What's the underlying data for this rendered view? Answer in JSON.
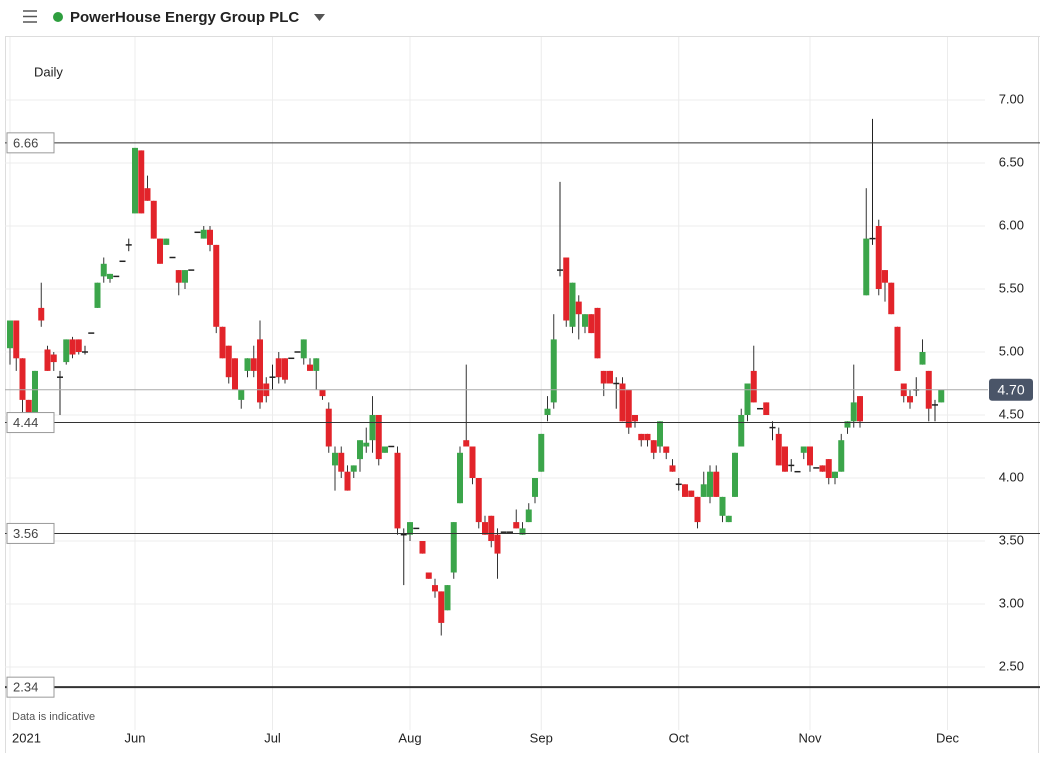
{
  "chart_data": {
    "type": "candlestick",
    "title": "PowerHouse Energy Group PLC",
    "interval": "Daily",
    "note": "Data is indicative",
    "up_color": "#3ba54a",
    "down_color": "#e2242a",
    "grid": true,
    "categories": [
      "2021",
      null,
      null,
      null,
      null,
      null,
      null,
      null,
      null,
      null,
      null,
      null,
      null,
      null,
      null,
      null,
      null,
      null,
      null,
      null,
      "Jun",
      null,
      null,
      null,
      null,
      null,
      null,
      null,
      null,
      null,
      null,
      null,
      null,
      null,
      null,
      null,
      null,
      null,
      null,
      null,
      null,
      null,
      "Jul",
      null,
      null,
      null,
      null,
      null,
      null,
      null,
      null,
      null,
      null,
      null,
      null,
      null,
      null,
      null,
      null,
      null,
      null,
      null,
      null,
      null,
      "Aug",
      null,
      null,
      null,
      null,
      null,
      null,
      null,
      null,
      null,
      null,
      null,
      null,
      null,
      null,
      null,
      null,
      null,
      null,
      null,
      null,
      "Sep",
      null,
      null,
      null,
      null,
      null,
      null,
      null,
      null,
      null,
      null,
      null,
      null,
      null,
      null,
      null,
      null,
      null,
      null,
      null,
      null,
      null,
      "Oct",
      null,
      null,
      null,
      null,
      null,
      null,
      null,
      null,
      null,
      null,
      null,
      null,
      null,
      null,
      null,
      null,
      null,
      null,
      null,
      null,
      "Nov",
      null,
      null,
      null,
      null,
      null,
      null,
      null,
      null,
      null,
      null,
      null,
      null,
      null,
      null,
      null,
      null,
      null,
      null,
      null,
      null,
      null,
      "Dec"
    ],
    "open": [
      5.03,
      5.25,
      4.95,
      4.62,
      4.5,
      5.35,
      5.02,
      4.98,
      4.8,
      4.92,
      5.1,
      5.1,
      5.0,
      5.15,
      5.35,
      5.6,
      5.58,
      5.6,
      5.72,
      5.85,
      6.1,
      6.6,
      6.3,
      6.2,
      5.9,
      5.85,
      5.75,
      5.65,
      5.55,
      5.65,
      5.95,
      5.9,
      5.97,
      5.85,
      5.2,
      5.05,
      4.95,
      4.62,
      4.85,
      4.95,
      5.1,
      4.75,
      4.8,
      4.95,
      4.95,
      4.95,
      5.0,
      4.95,
      4.9,
      4.85,
      4.7,
      4.55,
      4.1,
      4.2,
      4.05,
      4.05,
      4.15,
      4.25,
      4.3,
      4.5,
      4.2,
      4.25,
      4.2,
      3.55,
      3.55,
      3.6,
      3.5,
      3.25,
      3.15,
      3.1,
      2.95,
      3.25,
      3.8,
      4.3,
      4.25,
      4.0,
      3.65,
      3.7,
      3.55,
      3.57,
      3.57,
      3.65,
      3.55,
      3.65,
      3.85,
      4.05,
      4.5,
      4.6,
      5.65,
      5.75,
      5.2,
      5.4,
      5.2,
      5.3,
      5.35,
      4.85,
      4.85,
      4.75,
      4.75,
      4.7,
      4.5,
      4.35,
      4.35,
      4.3,
      4.25,
      4.25,
      4.1,
      3.95,
      3.95,
      3.9,
      3.85,
      3.85,
      3.85,
      4.05,
      3.7,
      3.65,
      3.85,
      4.25,
      4.5,
      4.85,
      4.55,
      4.6,
      4.4,
      4.35,
      4.25,
      4.1,
      4.05,
      4.2,
      4.25,
      4.08,
      4.1,
      4.15,
      4.0,
      4.05,
      4.4,
      4.45,
      4.65,
      5.45,
      5.9,
      6.0,
      5.65,
      5.55,
      5.2,
      4.75,
      4.65,
      4.7,
      4.9,
      4.85,
      4.58,
      4.6,
      null
    ],
    "high": [
      5.25,
      5.25,
      4.95,
      4.62,
      4.85,
      5.55,
      5.05,
      5.0,
      4.85,
      5.1,
      5.12,
      5.1,
      5.05,
      5.15,
      5.55,
      5.75,
      5.62,
      5.6,
      5.72,
      5.9,
      6.62,
      6.6,
      6.4,
      6.2,
      5.9,
      5.9,
      5.75,
      5.65,
      5.65,
      5.65,
      5.95,
      6.0,
      6.0,
      5.85,
      5.2,
      5.05,
      4.95,
      4.7,
      4.95,
      5.05,
      5.25,
      4.8,
      4.9,
      5.0,
      4.95,
      4.95,
      5.0,
      5.1,
      4.95,
      4.95,
      4.7,
      4.6,
      4.25,
      4.25,
      4.1,
      4.1,
      4.3,
      4.4,
      4.65,
      4.5,
      4.25,
      4.25,
      4.25,
      3.6,
      3.65,
      3.6,
      3.5,
      3.25,
      3.2,
      3.1,
      3.15,
      3.65,
      4.25,
      4.9,
      4.25,
      4.0,
      3.7,
      3.7,
      3.6,
      3.57,
      3.57,
      3.75,
      3.65,
      3.8,
      4.0,
      4.35,
      4.65,
      5.3,
      6.35,
      5.75,
      5.55,
      5.45,
      5.3,
      5.3,
      5.35,
      4.85,
      4.85,
      4.8,
      4.8,
      4.7,
      4.5,
      4.35,
      4.35,
      4.3,
      4.45,
      4.25,
      4.15,
      4.0,
      3.95,
      3.9,
      3.85,
      4.05,
      4.1,
      4.1,
      3.85,
      3.7,
      4.2,
      4.55,
      4.75,
      5.05,
      4.55,
      4.6,
      4.45,
      4.4,
      4.25,
      4.15,
      4.05,
      4.25,
      4.25,
      4.08,
      4.1,
      4.15,
      4.05,
      4.35,
      4.45,
      4.9,
      4.65,
      6.3,
      6.85,
      6.05,
      5.65,
      5.55,
      5.2,
      4.75,
      4.7,
      4.8,
      5.1,
      4.85,
      4.62,
      4.7,
      null
    ],
    "low": [
      4.9,
      4.85,
      4.45,
      4.45,
      4.45,
      5.2,
      4.85,
      4.85,
      4.5,
      4.9,
      4.95,
      4.98,
      4.98,
      5.15,
      5.35,
      5.55,
      5.55,
      5.6,
      5.72,
      5.8,
      6.1,
      6.1,
      6.2,
      5.9,
      5.7,
      5.85,
      5.75,
      5.45,
      5.5,
      5.65,
      5.95,
      5.9,
      5.8,
      5.15,
      4.95,
      4.75,
      4.7,
      4.55,
      4.8,
      4.8,
      4.55,
      4.6,
      4.7,
      4.75,
      4.75,
      4.95,
      5.0,
      4.9,
      4.85,
      4.7,
      4.62,
      4.2,
      3.9,
      4.0,
      3.9,
      4.0,
      4.05,
      4.2,
      4.2,
      4.1,
      4.2,
      4.25,
      3.55,
      3.15,
      3.5,
      3.6,
      3.4,
      3.2,
      3.05,
      2.75,
      2.95,
      3.2,
      3.8,
      4.25,
      3.95,
      3.6,
      3.55,
      3.45,
      3.2,
      3.57,
      3.57,
      3.6,
      3.55,
      3.65,
      3.8,
      4.05,
      4.45,
      4.55,
      5.6,
      5.2,
      5.15,
      5.1,
      5.15,
      5.15,
      4.95,
      4.65,
      4.75,
      4.55,
      4.45,
      4.35,
      4.4,
      4.25,
      4.25,
      4.15,
      4.2,
      4.15,
      4.05,
      3.9,
      3.85,
      3.85,
      3.6,
      3.85,
      3.8,
      3.85,
      3.65,
      3.65,
      3.85,
      4.25,
      4.45,
      4.6,
      4.55,
      4.5,
      4.3,
      4.1,
      4.05,
      4.05,
      4.05,
      4.15,
      4.05,
      4.08,
      4.05,
      3.95,
      3.95,
      4.05,
      4.35,
      4.4,
      4.4,
      5.45,
      5.85,
      5.45,
      5.4,
      5.3,
      4.85,
      4.6,
      4.55,
      4.65,
      4.9,
      4.45,
      4.45,
      4.6,
      null
    ],
    "close": [
      5.25,
      4.95,
      4.62,
      4.5,
      4.85,
      5.25,
      4.85,
      4.92,
      4.8,
      5.1,
      4.98,
      5.0,
      5.0,
      5.15,
      5.55,
      5.7,
      5.62,
      5.6,
      5.72,
      5.85,
      6.62,
      6.1,
      6.2,
      5.9,
      5.7,
      5.9,
      5.75,
      5.55,
      5.65,
      5.65,
      5.95,
      5.97,
      5.85,
      5.2,
      4.95,
      4.8,
      4.7,
      4.7,
      4.95,
      4.85,
      4.6,
      4.65,
      4.8,
      4.8,
      4.78,
      4.95,
      5.0,
      5.1,
      4.85,
      4.95,
      4.65,
      4.25,
      4.2,
      4.05,
      3.9,
      4.1,
      4.3,
      4.28,
      4.5,
      4.15,
      4.25,
      4.25,
      3.6,
      3.55,
      3.65,
      3.6,
      3.4,
      3.2,
      3.1,
      2.85,
      3.15,
      3.65,
      4.2,
      4.25,
      4.0,
      3.65,
      3.55,
      3.5,
      3.4,
      3.57,
      3.57,
      3.6,
      3.6,
      3.75,
      4.0,
      4.35,
      4.55,
      5.1,
      5.65,
      5.25,
      5.55,
      5.3,
      5.3,
      5.15,
      4.95,
      4.75,
      4.75,
      4.75,
      4.45,
      4.4,
      4.45,
      4.3,
      4.3,
      4.2,
      4.45,
      4.2,
      4.05,
      3.95,
      3.85,
      3.85,
      3.65,
      3.95,
      4.05,
      3.85,
      3.85,
      3.7,
      4.2,
      4.5,
      4.75,
      4.6,
      4.55,
      4.5,
      4.4,
      4.1,
      4.05,
      4.1,
      4.05,
      4.25,
      4.1,
      4.08,
      4.05,
      4.0,
      4.05,
      4.3,
      4.45,
      4.6,
      4.45,
      5.9,
      5.9,
      5.5,
      5.55,
      5.3,
      4.85,
      4.65,
      4.6,
      4.7,
      5.0,
      4.55,
      4.58,
      4.7,
      null
    ],
    "ylim": [
      2.0,
      7.5
    ],
    "yticks": [
      {
        "value": 2.5,
        "label": "2.50"
      },
      {
        "value": 3,
        "label": "3.00"
      },
      {
        "value": 3.5,
        "label": "3.50"
      },
      {
        "value": 4,
        "label": "4.00"
      },
      {
        "value": 4.5,
        "label": "4.50"
      },
      {
        "value": 5,
        "label": "5.00"
      },
      {
        "value": 5.5,
        "label": "5.50"
      },
      {
        "value": 6,
        "label": "6.00"
      },
      {
        "value": 6.5,
        "label": "6.50"
      },
      {
        "value": 7,
        "label": "7.00"
      }
    ],
    "levels": [
      6.66,
      4.44,
      3.56,
      2.34
    ],
    "last_price": {
      "value": 4.7,
      "label": "4.70"
    }
  }
}
